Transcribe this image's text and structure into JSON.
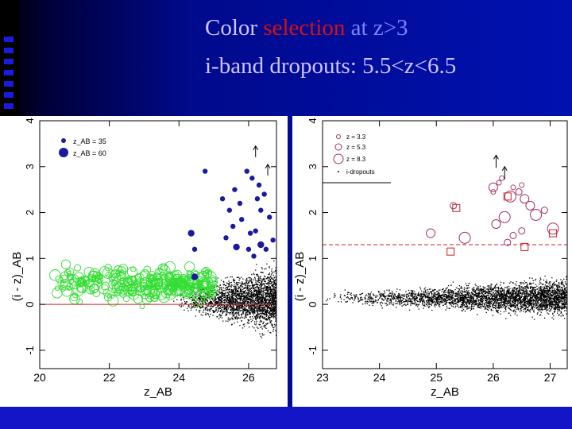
{
  "title": {
    "part1": "Color",
    "part2": "selection",
    "part3": "at z>3"
  },
  "subtitle": "i-band dropouts: 5.5<z<6.5",
  "colors": {
    "title_text": "#cfc4ff",
    "title_red": "#d81010",
    "title_blue": "#7c84ff",
    "background": "#0011b0",
    "green_circles": "#33dd33",
    "blue_points": "#1a1aa0",
    "red_lines": "#cc2222",
    "magenta": "#a0306a"
  },
  "chart_data": [
    {
      "type": "scatter",
      "xlabel": "z_AB",
      "ylabel": "(i - z)_AB",
      "xlim": [
        20,
        26.8
      ],
      "ylim": [
        -1.4,
        4
      ],
      "xticks": [
        "20",
        "22",
        "24",
        "26"
      ],
      "yticks": [
        "-1",
        "0",
        "1",
        "2",
        "3",
        "4"
      ],
      "legend": {
        "position": "top-left",
        "entries": [
          "z_AB = 35",
          "z_AB = 60"
        ]
      },
      "selection_line_y": 0,
      "series": [
        {
          "points": [
            [
              24.75,
              2.9
            ],
            [
              25.25,
              2.3
            ],
            [
              25.45,
              2.05
            ],
            [
              25.55,
              1.7
            ],
            [
              25.6,
              2.5
            ],
            [
              25.75,
              2.2
            ],
            [
              25.8,
              1.85
            ],
            [
              26.1,
              2.75
            ],
            [
              26.3,
              2.6
            ],
            [
              26.35,
              2.05
            ],
            [
              26.05,
              1.55
            ],
            [
              26.6,
              1.9
            ],
            [
              26.7,
              1.4
            ],
            [
              25.35,
              1.45
            ],
            [
              24.45,
              1.2
            ],
            [
              26.15,
              1.05
            ],
            [
              26.25,
              2.3
            ],
            [
              26.5,
              1.2
            ],
            [
              25.95,
              2.9
            ],
            [
              26.45,
              2.4
            ],
            [
              26.2,
              1.6
            ],
            [
              26.0,
              1.2
            ]
          ]
        },
        {
          "points": [
            [
              24.35,
              1.55
            ],
            [
              25.65,
              1.25
            ],
            [
              26.35,
              1.3
            ],
            [
              24.45,
              0.6
            ]
          ]
        },
        {
          "points": [
            [
              26.2,
              3.45
            ],
            [
              26.55,
              3.05
            ]
          ]
        }
      ]
    },
    {
      "type": "scatter",
      "xlabel": "z_AB",
      "ylabel": "(i - z)_AB",
      "xlim": [
        23,
        27.3
      ],
      "ylim": [
        -1.4,
        4
      ],
      "xticks": [
        "23",
        "24",
        "25",
        "26",
        "27"
      ],
      "yticks": [
        "-1",
        "0",
        "1",
        "2",
        "3",
        "4"
      ],
      "legend": {
        "position": "top-left",
        "entries": [
          "z = 3.3",
          "z = 5.3",
          "z = 8.3",
          "i-dropouts"
        ]
      },
      "selection_line_y": 1.3,
      "series": [
        {
          "points": [
            [
              25.3,
              2.15
            ],
            [
              26.0,
              2.55
            ],
            [
              26.3,
              2.35
            ],
            [
              26.45,
              2.45
            ],
            [
              26.65,
              2.15
            ],
            [
              27.05,
              1.65
            ],
            [
              26.35,
              1.5
            ],
            [
              26.05,
              1.75
            ],
            [
              26.2,
              1.9
            ],
            [
              26.5,
              1.6
            ],
            [
              26.55,
              2.3
            ],
            [
              26.75,
              1.95
            ],
            [
              26.9,
              2.05
            ],
            [
              24.9,
              1.55
            ],
            [
              25.5,
              1.45
            ],
            [
              26.25,
              1.35
            ]
          ]
        },
        {
          "points": [
            [
              26.1,
              2.65
            ],
            [
              26.15,
              2.75
            ],
            [
              26.35,
              2.55
            ],
            [
              26.0,
              2.45
            ],
            [
              26.5,
              2.6
            ]
          ]
        },
        {
          "points": [
            [
              25.25,
              1.15
            ],
            [
              26.55,
              1.25
            ],
            [
              27.05,
              1.55
            ],
            [
              25.35,
              2.1
            ],
            [
              26.25,
              2.35
            ]
          ]
        },
        {
          "points": [
            [
              26.05,
              3.25
            ],
            [
              26.2,
              3.0
            ]
          ]
        }
      ]
    }
  ]
}
